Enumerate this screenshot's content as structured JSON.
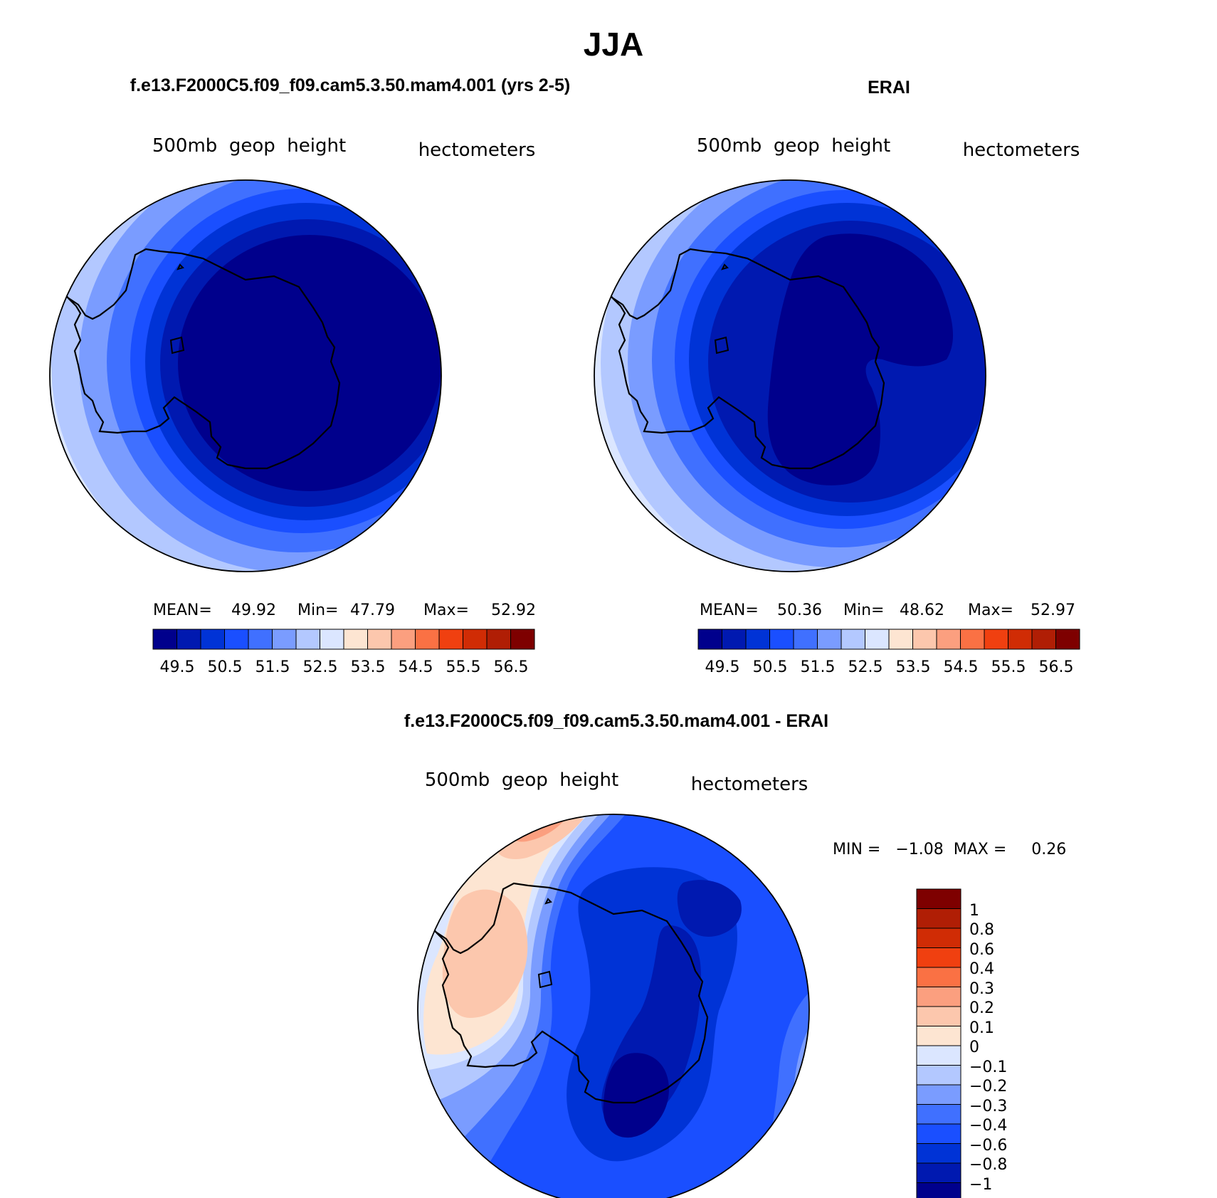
{
  "title": "JJA",
  "colorbar_colors": [
    "#00008c",
    "#0019b0",
    "#0033d6",
    "#1a4fff",
    "#4070ff",
    "#7a9cff",
    "#b3c8ff",
    "#dbe6ff",
    "#fde5d2",
    "#fcc7ad",
    "#fb9f7f",
    "#fa7144",
    "#f04010",
    "#d02c05",
    "#b01e05",
    "#7e0000"
  ],
  "diff_colors": [
    "#00008c",
    "#0019b0",
    "#0033d6",
    "#1a4fff",
    "#4070ff",
    "#7a9cff",
    "#b3c8ff",
    "#dbe6ff",
    "#fde5d2",
    "#fcc7ad",
    "#fb9f7f",
    "#fa7144",
    "#f04010",
    "#d02c05",
    "#b01e05",
    "#7e0000"
  ],
  "panels": [
    {
      "heading": "f.e13.F2000C5.f09_f09.cam5.3.50.mam4.001 (yrs 2-5)",
      "field": "500mb  geop  height",
      "units": "hectometers",
      "stats": {
        "mean_label": "MEAN=",
        "mean": "49.92",
        "min_label": "Min=",
        "min": "47.79",
        "max_label": "Max=",
        "max": "52.92"
      },
      "ticks": [
        "49.5",
        "50.5",
        "51.5",
        "52.5",
        "53.5",
        "54.5",
        "55.5",
        "56.5"
      ]
    },
    {
      "heading": "ERAI",
      "field": "500mb  geop  height",
      "units": "hectometers",
      "stats": {
        "mean_label": "MEAN=",
        "mean": "50.36",
        "min_label": "Min=",
        "min": "48.62",
        "max_label": "Max=",
        "max": "52.97"
      },
      "ticks": [
        "49.5",
        "50.5",
        "51.5",
        "52.5",
        "53.5",
        "54.5",
        "55.5",
        "56.5"
      ]
    }
  ],
  "diff": {
    "heading": "f.e13.F2000C5.f09_f09.cam5.3.50.mam4.001 - ERAI",
    "field": "500mb  geop  height",
    "units": "hectometers",
    "minmax": "MIN =   −1.08  MAX =     0.26",
    "ticks": [
      "1",
      "0.8",
      "0.6",
      "0.4",
      "0.3",
      "0.2",
      "0.1",
      "0",
      "−0.1",
      "−0.2",
      "−0.3",
      "−0.4",
      "−0.6",
      "−0.8",
      "−1"
    ]
  }
}
